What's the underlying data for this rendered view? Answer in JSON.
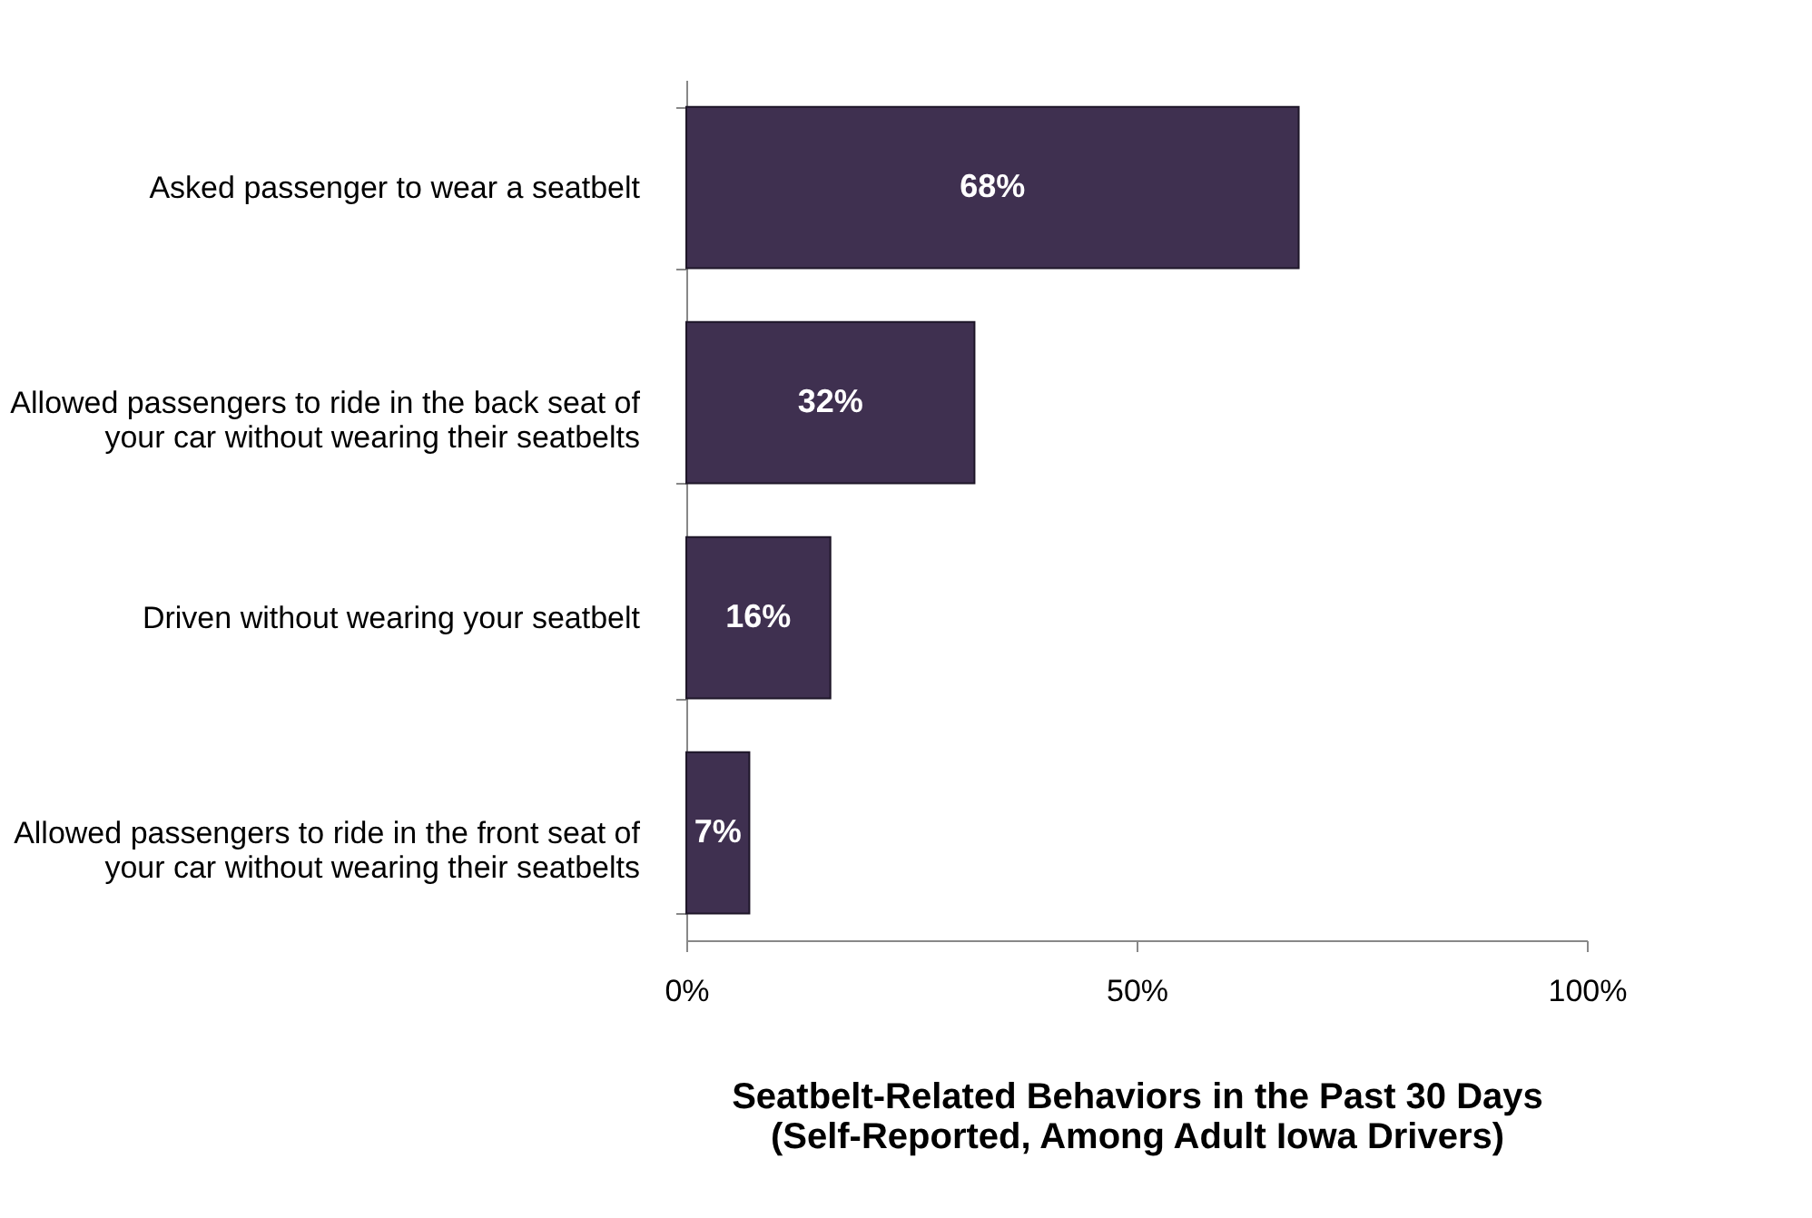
{
  "chart_data": {
    "type": "bar",
    "orientation": "horizontal",
    "categories": [
      "Asked passenger to wear a seatbelt",
      "Allowed passengers to ride in the back seat of your car without wearing their seatbelts",
      "Driven without wearing your seatbelt",
      "Allowed passengers to ride in the front seat of your car without wearing their seatbelts"
    ],
    "values": [
      68,
      32,
      16,
      7
    ],
    "value_labels": [
      "68%",
      "32%",
      "16%",
      "7%"
    ],
    "color": "#3f3050",
    "xlim": [
      0,
      100
    ],
    "xticks": [
      {
        "value": 0,
        "label": "0%"
      },
      {
        "value": 50,
        "label": "50%"
      },
      {
        "value": 100,
        "label": "100%"
      }
    ],
    "xlabel": "Seatbelt-Related Behaviors in the Past 30 Days (Self-Reported, Among Adult Iowa Drivers)",
    "grid": false
  }
}
